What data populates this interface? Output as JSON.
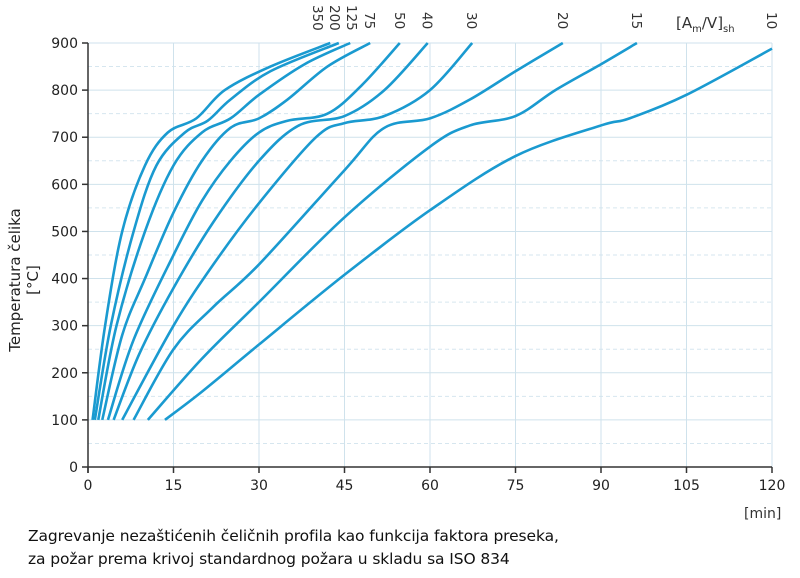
{
  "chart_data": {
    "type": "line",
    "title": "",
    "xlabel": "[min]",
    "ylabel": "Temperatura čelika  [°C]",
    "xlim": [
      0,
      120
    ],
    "ylim": [
      0,
      900
    ],
    "xticks": [
      "0",
      "15",
      "30",
      "45",
      "60",
      "75",
      "90",
      "105",
      "120"
    ],
    "yticks": [
      "0",
      "100",
      "200",
      "300",
      "400",
      "500",
      "600",
      "700",
      "800",
      "900"
    ],
    "grid": true,
    "legend_header": {
      "a": "[A",
      "sub1": "m",
      "b": "/V]",
      "sub2": "sh"
    },
    "series": [
      {
        "name": "350",
        "points": [
          [
            0.8,
            100
          ],
          [
            3,
            300
          ],
          [
            6,
            500
          ],
          [
            10,
            640
          ],
          [
            14,
            710
          ],
          [
            19,
            740
          ],
          [
            24,
            800
          ],
          [
            32,
            850
          ],
          [
            42.5,
            900
          ]
        ]
      },
      {
        "name": "200",
        "points": [
          [
            1.2,
            100
          ],
          [
            4,
            300
          ],
          [
            8,
            500
          ],
          [
            12,
            640
          ],
          [
            17,
            710
          ],
          [
            21,
            735
          ],
          [
            25,
            780
          ],
          [
            32,
            840
          ],
          [
            44,
            900
          ]
        ]
      },
      {
        "name": "125",
        "points": [
          [
            1.8,
            100
          ],
          [
            5,
            300
          ],
          [
            10,
            500
          ],
          [
            15,
            640
          ],
          [
            20,
            710
          ],
          [
            25,
            740
          ],
          [
            30,
            790
          ],
          [
            38,
            855
          ],
          [
            46,
            900
          ]
        ]
      },
      {
        "name": "75",
        "points": [
          [
            2.5,
            100
          ],
          [
            6,
            280
          ],
          [
            10,
            400
          ],
          [
            15,
            540
          ],
          [
            20,
            650
          ],
          [
            25,
            720
          ],
          [
            30,
            740
          ],
          [
            35,
            780
          ],
          [
            42,
            850
          ],
          [
            49.5,
            900
          ]
        ]
      },
      {
        "name": "50",
        "points": [
          [
            3.5,
            100
          ],
          [
            8,
            270
          ],
          [
            15,
            450
          ],
          [
            20,
            565
          ],
          [
            25,
            650
          ],
          [
            30,
            710
          ],
          [
            35,
            735
          ],
          [
            42,
            750
          ],
          [
            48,
            810
          ],
          [
            54.7,
            900
          ]
        ]
      },
      {
        "name": "40",
        "points": [
          [
            4.5,
            100
          ],
          [
            9,
            240
          ],
          [
            15,
            380
          ],
          [
            22,
            520
          ],
          [
            30,
            650
          ],
          [
            37,
            725
          ],
          [
            45,
            745
          ],
          [
            52,
            800
          ],
          [
            59.6,
            900
          ]
        ]
      },
      {
        "name": "30",
        "points": [
          [
            6,
            100
          ],
          [
            15,
            300
          ],
          [
            22,
            430
          ],
          [
            30,
            560
          ],
          [
            40,
            700
          ],
          [
            45,
            730
          ],
          [
            52,
            745
          ],
          [
            60,
            800
          ],
          [
            67.4,
            900
          ]
        ]
      },
      {
        "name": "20",
        "points": [
          [
            8,
            100
          ],
          [
            15,
            250
          ],
          [
            22,
            340
          ],
          [
            30,
            430
          ],
          [
            45,
            630
          ],
          [
            52,
            720
          ],
          [
            60,
            740
          ],
          [
            67,
            780
          ],
          [
            75,
            840
          ],
          [
            83.3,
            900
          ]
        ]
      },
      {
        "name": "15",
        "points": [
          [
            10.5,
            100
          ],
          [
            20,
            230
          ],
          [
            30,
            350
          ],
          [
            45,
            530
          ],
          [
            60,
            680
          ],
          [
            67,
            725
          ],
          [
            75,
            745
          ],
          [
            82,
            800
          ],
          [
            90,
            855
          ],
          [
            96.3,
            900
          ]
        ]
      },
      {
        "name": "10",
        "points": [
          [
            13.5,
            100
          ],
          [
            20,
            160
          ],
          [
            30,
            260
          ],
          [
            45,
            408
          ],
          [
            60,
            545
          ],
          [
            75,
            660
          ],
          [
            90,
            725
          ],
          [
            95,
            740
          ],
          [
            105,
            790
          ],
          [
            120,
            888
          ]
        ]
      }
    ],
    "line_color": "#1a9ad0",
    "caption_line1": "Zagrevanje nezaštićenih čeličnih profila kao funkcija faktora preseka,",
    "caption_line2": "za požar prema krivoj standardnog požara u skladu sa ISO 834"
  }
}
